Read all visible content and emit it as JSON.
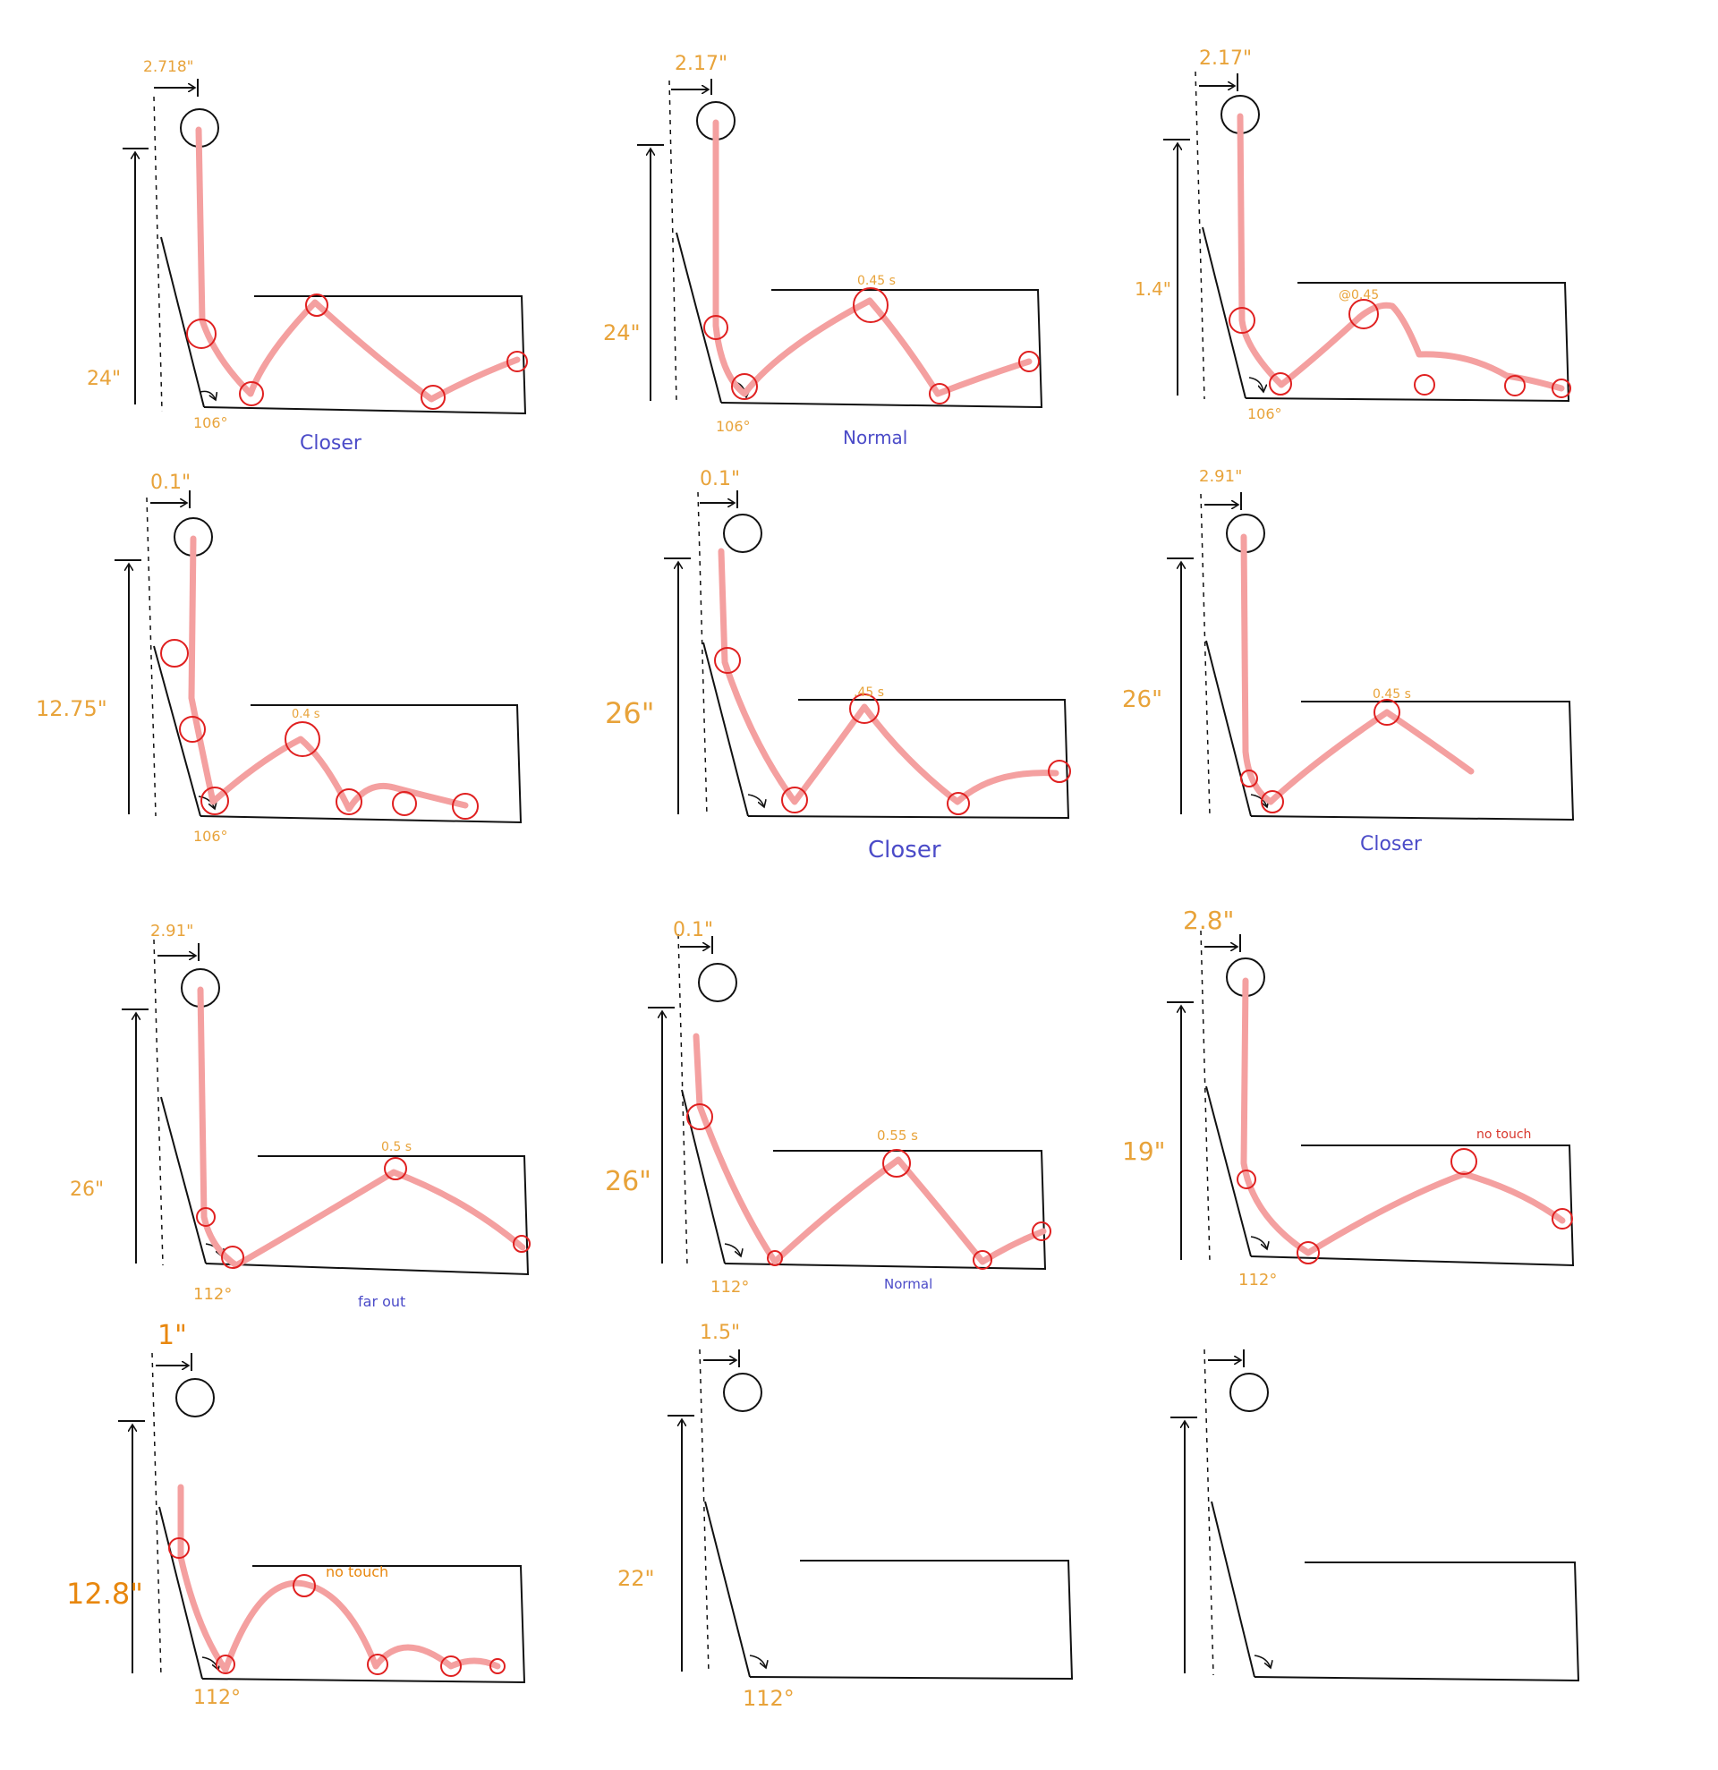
{
  "colors": {
    "ink": "#111111",
    "path": "#f4a0a0",
    "marker": "#e02020",
    "measurement": "#e8a33a",
    "measurement_strong": "#e8870e",
    "note": "#4b4bc8",
    "no_touch": "#d8362c"
  },
  "panels": [
    {
      "offset": "2.718\"",
      "height": "24\"",
      "angle": "106°",
      "peak_time": "",
      "note": "Closer"
    },
    {
      "offset": "2.17\"",
      "height": "24\"",
      "angle": "106°",
      "peak_time": "0.45 s",
      "note": "Normal"
    },
    {
      "offset": "2.17\"",
      "height": "1.4\"",
      "angle": "106°",
      "peak_time": "@0.45",
      "note": ""
    },
    {
      "offset": "0.1\"",
      "height": "12.75\"",
      "angle": "106°",
      "peak_time": "0.4 s",
      "note": ""
    },
    {
      "offset": "0.1\"",
      "height": "26\"",
      "angle": "",
      "peak_time": ".45 s",
      "note": "Closer"
    },
    {
      "offset": "2.91\"",
      "height": "26\"",
      "angle": "",
      "peak_time": "0.45 s",
      "note": "Closer"
    },
    {
      "offset": "2.91\"",
      "height": "26\"",
      "angle": "112°",
      "peak_time": "0.5 s",
      "note": "far out"
    },
    {
      "offset": "0.1\"",
      "height": "26\"",
      "angle": "112°",
      "peak_time": "0.55 s",
      "note": "Normal"
    },
    {
      "offset": "2.8\"",
      "height": "19\"",
      "angle": "112°",
      "peak_time": "no touch",
      "note": ""
    },
    {
      "offset": "1\"",
      "height": "12.8\"",
      "angle": "112°",
      "peak_time": "no touch",
      "note": ""
    },
    {
      "offset": "1.5\"",
      "height": "22\"",
      "angle": "112°",
      "peak_time": "",
      "note": ""
    },
    {
      "offset": "",
      "height": "",
      "angle": "",
      "peak_time": "",
      "note": ""
    }
  ]
}
